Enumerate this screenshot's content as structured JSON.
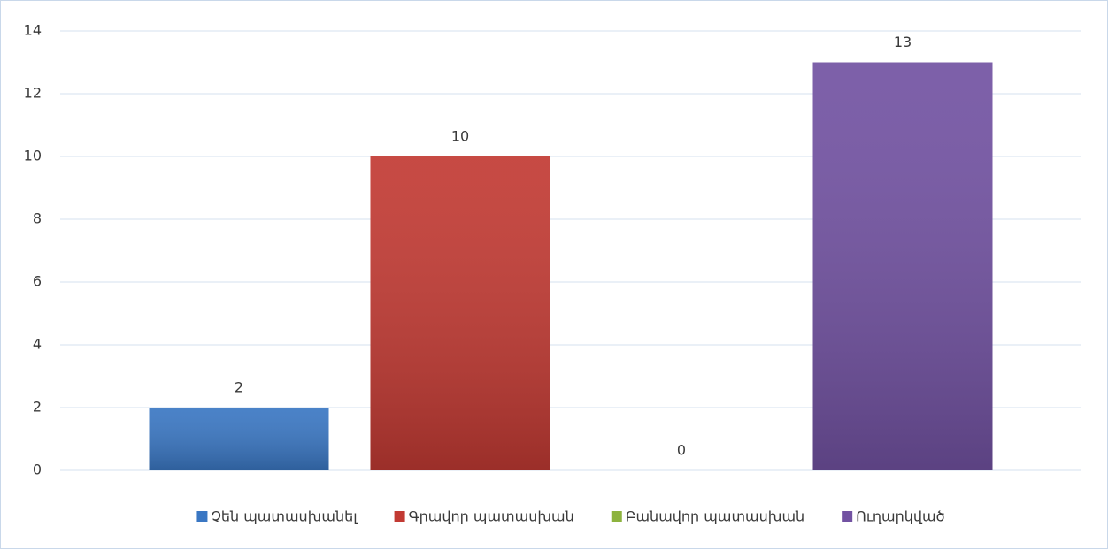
{
  "chart_data": {
    "type": "bar",
    "categories": [
      null
    ],
    "series": [
      {
        "name": "Չեն պատասխանել",
        "color": "#3a77c3",
        "values": [
          2
        ]
      },
      {
        "name": "Գրավոր պատասխան",
        "color": "#c23a33",
        "values": [
          10
        ]
      },
      {
        "name": "Բանավոր պատասխան",
        "color": "#8db33e",
        "values": [
          0
        ]
      },
      {
        "name": "Ուղարկված",
        "color": "#7252a2",
        "values": [
          13
        ]
      }
    ],
    "ylim": [
      0,
      14
    ],
    "yticks": [
      0,
      2,
      4,
      6,
      8,
      10,
      12,
      14
    ],
    "grid": true,
    "legend": "bottom"
  }
}
